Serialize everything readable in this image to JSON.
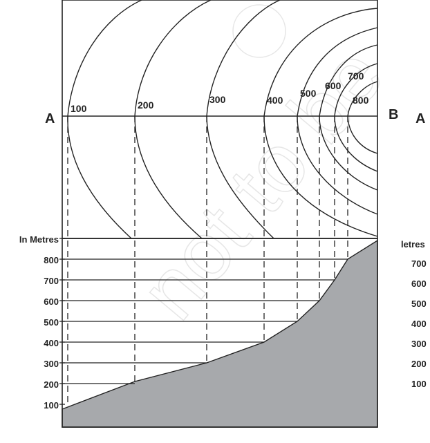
{
  "diagram": {
    "section_start_label": "A",
    "section_end_label": "B",
    "right_edge_label": "A",
    "watermark": "© not to be",
    "contours": [
      {
        "value": 100,
        "label": "100"
      },
      {
        "value": 200,
        "label": "200"
      },
      {
        "value": 300,
        "label": "300"
      },
      {
        "value": 400,
        "label": "400"
      },
      {
        "value": 500,
        "label": "500"
      },
      {
        "value": 600,
        "label": "600"
      },
      {
        "value": 700,
        "label": "700"
      },
      {
        "value": 800,
        "label": "800"
      }
    ],
    "profile": {
      "axis_title": "In Metres",
      "tick_labels": [
        "800",
        "700",
        "600",
        "500",
        "400",
        "300",
        "200",
        "100"
      ]
    },
    "cropped_axis": {
      "axis_title": "letres",
      "tick_labels": [
        "700",
        "600",
        "500",
        "400",
        "300",
        "200",
        "100"
      ]
    },
    "colors": {
      "profile_fill": "#a7a9ac",
      "line": "#222222"
    }
  }
}
